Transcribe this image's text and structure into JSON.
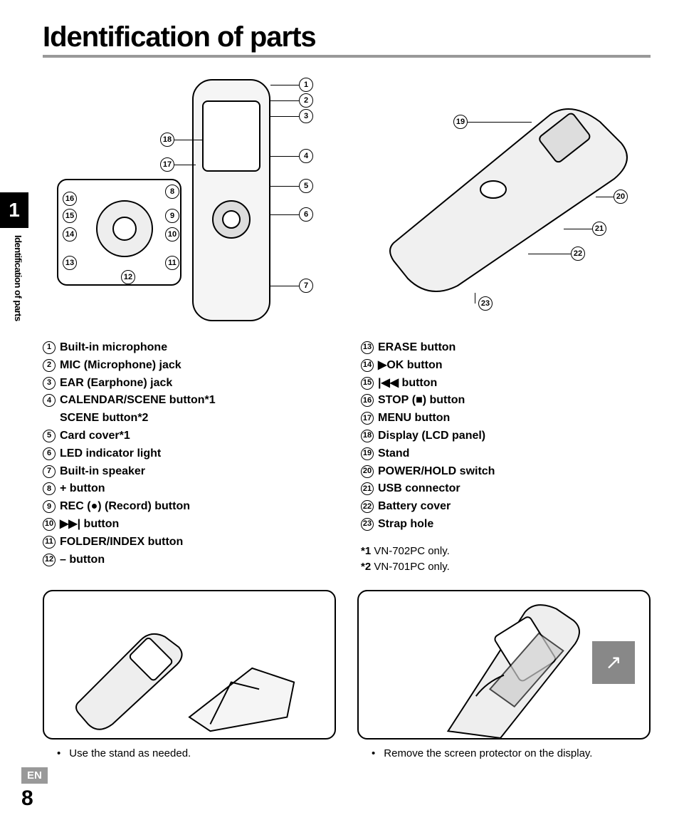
{
  "title": "Identification of parts",
  "chapter_number": "1",
  "side_label": "Identification of parts",
  "language_tag": "EN",
  "page_number": "8",
  "colors": {
    "text": "#000000",
    "background": "#ffffff",
    "rule": "#999999",
    "tab_bg": "#000000",
    "tab_fg": "#ffffff",
    "lang_bg": "#999999"
  },
  "diagram_front_callouts": [
    "1",
    "2",
    "3",
    "4",
    "5",
    "6",
    "7",
    "8",
    "9",
    "10",
    "11",
    "12",
    "13",
    "14",
    "15",
    "16",
    "17",
    "18"
  ],
  "diagram_back_callouts": [
    "19",
    "20",
    "21",
    "22",
    "23"
  ],
  "parts_left": [
    {
      "n": "1",
      "html": "Built-in microphone"
    },
    {
      "n": "2",
      "html": "<b>MIC</b> (Microphone) jack"
    },
    {
      "n": "3",
      "html": "<b>EAR</b> (Earphone) jack"
    },
    {
      "n": "4",
      "html": "<b>CALENDAR/SCENE</b> button*<b>1</b>"
    },
    {
      "n": "",
      "html": "<b>SCENE</b> button*<b>2</b>",
      "indent": true
    },
    {
      "n": "5",
      "html": "Card cover*<b>1</b>"
    },
    {
      "n": "6",
      "html": "LED indicator light"
    },
    {
      "n": "7",
      "html": "Built-in speaker"
    },
    {
      "n": "8",
      "html": "+ button"
    },
    {
      "n": "9",
      "html": "<b>REC</b> (<span class='sym'>●</span>) (Record) button"
    },
    {
      "n": "10",
      "html": "<span class='sym'>▶▶|</span> button"
    },
    {
      "n": "11",
      "html": "<b>FOLDER/INDEX</b> button"
    },
    {
      "n": "12",
      "html": "– button"
    }
  ],
  "parts_right": [
    {
      "n": "13",
      "html": "<b>ERASE</b> button"
    },
    {
      "n": "14",
      "html": "<span class='sym'>▶</span><b>OK</b> button"
    },
    {
      "n": "15",
      "html": "<span class='sym'>|◀◀</span> button"
    },
    {
      "n": "16",
      "html": "<b>STOP</b> (<span class='sym'>■</span>) button"
    },
    {
      "n": "17",
      "html": "<b>MENU</b> button"
    },
    {
      "n": "18",
      "html": "Display (LCD panel)"
    },
    {
      "n": "19",
      "html": "Stand"
    },
    {
      "n": "20",
      "html": "<b>POWER/HOLD</b> switch"
    },
    {
      "n": "21",
      "html": "USB connector"
    },
    {
      "n": "22",
      "html": "Battery cover"
    },
    {
      "n": "23",
      "html": "Strap hole"
    }
  ],
  "footnotes": [
    {
      "key": "*1",
      "text": "VN-702PC only."
    },
    {
      "key": "*2",
      "text": "VN-701PC only."
    }
  ],
  "captions": {
    "left": "Use the stand as needed.",
    "right": "Remove the screen protector on the display."
  }
}
